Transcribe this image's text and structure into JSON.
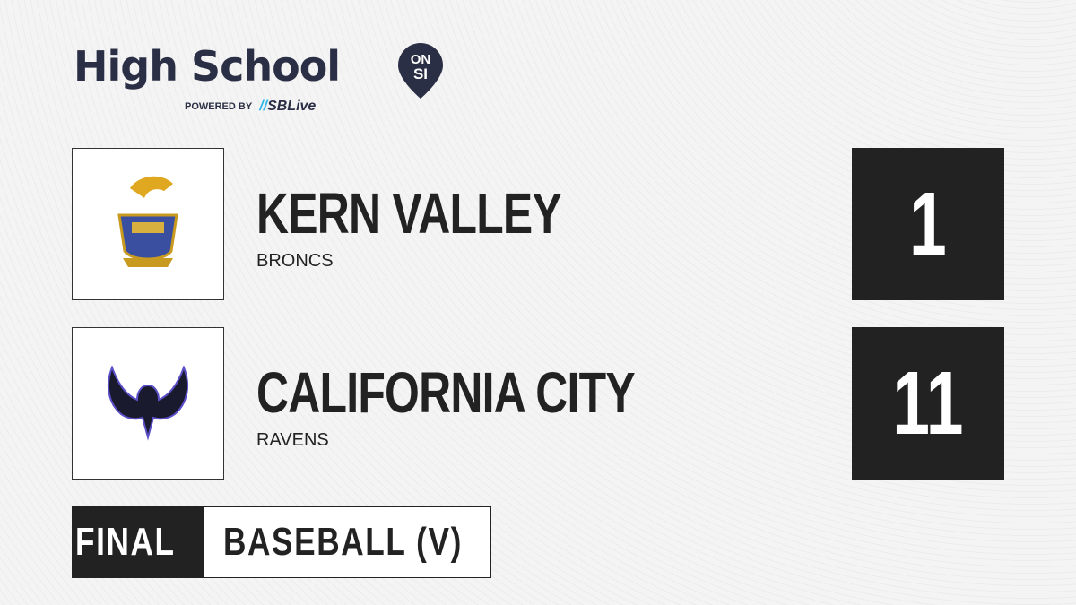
{
  "brand": {
    "title": "High School",
    "badge_top": "ON",
    "badge_bottom": "SI",
    "powered_by": "POWERED BY",
    "partner": "SBLive",
    "navy": "#2b2f45",
    "accent": "#2bb5e8"
  },
  "teams": [
    {
      "name": "KERN VALLEY",
      "mascot": "BRONCS",
      "score": "1",
      "logo": "kern-valley-crest"
    },
    {
      "name": "CALIFORNIA CITY",
      "mascot": "RAVENS",
      "score": "11",
      "logo": "raven-wings"
    }
  ],
  "game": {
    "status": "FINAL",
    "sport": "BASEBALL (V)"
  }
}
